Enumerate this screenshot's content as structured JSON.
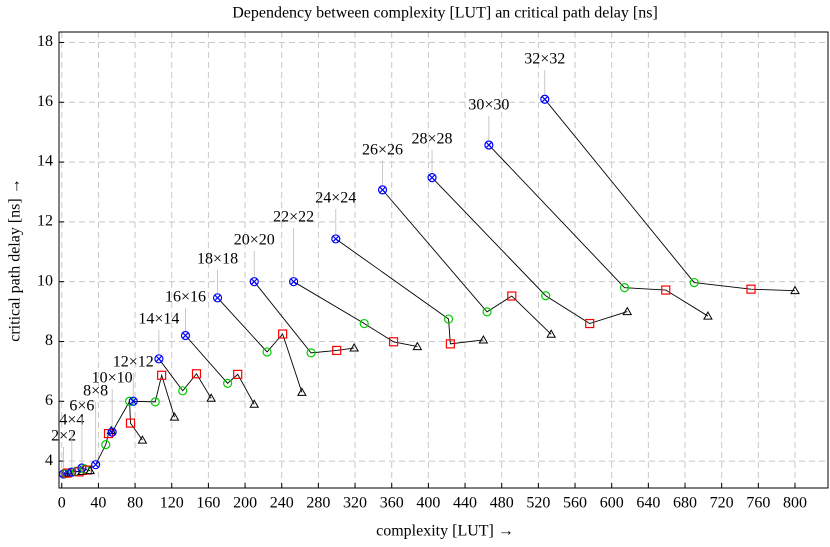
{
  "chart_data": {
    "type": "line",
    "title": "Dependency between complexity [LUT] an critical path delay [ns]",
    "x_label": "complexity [LUT] →",
    "y_label": "critical path delay [ns] →",
    "xlim": [
      -3,
      836
    ],
    "ylim": [
      3.1,
      18.35
    ],
    "xticks": [
      0,
      40,
      80,
      120,
      160,
      200,
      240,
      280,
      320,
      360,
      400,
      440,
      480,
      520,
      560,
      600,
      640,
      680,
      720,
      760,
      800
    ],
    "yticks": [
      4,
      6,
      8,
      10,
      12,
      14,
      16,
      18
    ],
    "grid": true,
    "line_color": "#000000",
    "marker_colors": [
      "#0000ff",
      "#00cc00",
      "#ff0000",
      "#000000"
    ],
    "series": [
      {
        "name": "2×2",
        "x": [
          2,
          4,
          6,
          8
        ],
        "values": [
          3.57,
          3.58,
          3.6,
          3.6
        ]
      },
      {
        "name": "4×4",
        "x": [
          11,
          16,
          19,
          22
        ],
        "values": [
          3.63,
          3.66,
          3.64,
          3.65
        ]
      },
      {
        "name": "6×6",
        "x": [
          22,
          25,
          28,
          31
        ],
        "values": [
          3.77,
          3.74,
          3.7,
          3.68
        ]
      },
      {
        "name": "8×8",
        "x": [
          37,
          48,
          51,
          54
        ],
        "values": [
          3.88,
          4.55,
          4.92,
          5.02
        ]
      },
      {
        "name": "10×10",
        "x": [
          55,
          74,
          75,
          88
        ],
        "values": [
          4.97,
          6.0,
          5.27,
          4.7
        ]
      },
      {
        "name": "12×12",
        "x": [
          78,
          102,
          109,
          123
        ],
        "values": [
          6.0,
          5.98,
          6.87,
          5.47
        ]
      },
      {
        "name": "14×14",
        "x": [
          106,
          132,
          147,
          163
        ],
        "values": [
          7.42,
          6.35,
          6.92,
          6.1
        ]
      },
      {
        "name": "16×16",
        "x": [
          135,
          181,
          192,
          210
        ],
        "values": [
          8.2,
          6.6,
          6.9,
          5.9
        ]
      },
      {
        "name": "18×18",
        "x": [
          170,
          224,
          241,
          262
        ],
        "values": [
          9.46,
          7.65,
          8.25,
          6.3
        ]
      },
      {
        "name": "20×20",
        "x": [
          210,
          272,
          300,
          319
        ],
        "values": [
          10.0,
          7.62,
          7.7,
          7.78
        ]
      },
      {
        "name": "22×22",
        "x": [
          253,
          330,
          362,
          388
        ],
        "values": [
          10.0,
          8.6,
          7.99,
          7.83
        ]
      },
      {
        "name": "24×24",
        "x": [
          299,
          422,
          424,
          460
        ],
        "values": [
          11.43,
          8.75,
          7.92,
          8.05
        ]
      },
      {
        "name": "26×26",
        "x": [
          350,
          464,
          491,
          534
        ],
        "values": [
          13.07,
          8.99,
          9.52,
          8.24
        ]
      },
      {
        "name": "28×28",
        "x": [
          404,
          528,
          576,
          617
        ],
        "values": [
          13.48,
          9.53,
          8.6,
          9.0
        ]
      },
      {
        "name": "30×30",
        "x": [
          466,
          614,
          659,
          705
        ],
        "values": [
          14.57,
          9.8,
          9.72,
          8.85
        ]
      },
      {
        "name": "32×32",
        "x": [
          527,
          690,
          752,
          800
        ],
        "values": [
          16.1,
          9.97,
          9.75,
          9.7
        ]
      }
    ]
  }
}
